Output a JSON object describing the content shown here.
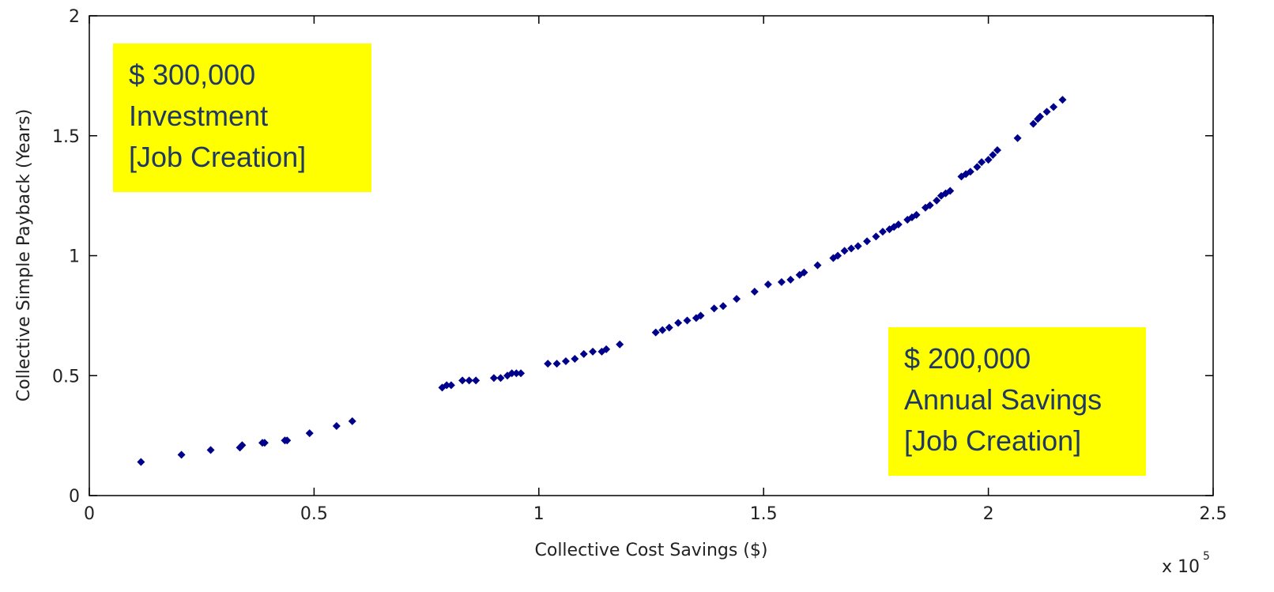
{
  "chart_data": {
    "type": "scatter",
    "title": "",
    "xlabel": "Collective Cost Savings ($)",
    "ylabel": "Collective Simple Payback (Years)",
    "x_multiplier_label": "x 10",
    "x_multiplier_exponent": "5",
    "xlim": [
      0,
      2.5
    ],
    "ylim": [
      0,
      2
    ],
    "x_ticks": [
      0,
      0.5,
      1,
      1.5,
      2,
      2.5
    ],
    "x_tick_labels": [
      "0",
      "0.5",
      "1",
      "1.5",
      "2",
      "2.5"
    ],
    "y_ticks": [
      0,
      0.5,
      1,
      1.5,
      2
    ],
    "y_tick_labels": [
      "0",
      "0.5",
      "1",
      "1.5",
      "2"
    ],
    "grid": false,
    "marker_color": "#00008b",
    "series": [
      {
        "x": [
          0.115,
          0.205,
          0.27,
          0.335,
          0.34,
          0.385,
          0.39,
          0.435,
          0.44,
          0.49,
          0.55,
          0.585,
          0.785,
          0.795,
          0.805,
          0.83,
          0.845,
          0.86,
          0.9,
          0.915,
          0.93,
          0.94,
          0.95,
          0.96,
          1.02,
          1.04,
          1.06,
          1.08,
          1.1,
          1.12,
          1.14,
          1.15,
          1.18,
          1.26,
          1.275,
          1.29,
          1.31,
          1.33,
          1.35,
          1.36,
          1.39,
          1.41,
          1.44,
          1.48,
          1.51,
          1.54,
          1.56,
          1.58,
          1.59,
          1.62,
          1.655,
          1.665,
          1.68,
          1.695,
          1.71,
          1.73,
          1.75,
          1.765,
          1.78,
          1.79,
          1.8,
          1.82,
          1.83,
          1.84,
          1.86,
          1.87,
          1.885,
          1.895,
          1.905,
          1.915,
          1.94,
          1.95,
          1.96,
          1.975,
          1.985,
          2.0,
          2.01,
          2.02,
          2.065,
          2.1,
          2.11,
          2.115,
          2.13,
          2.145,
          2.165
        ],
        "y": [
          0.14,
          0.17,
          0.19,
          0.2,
          0.21,
          0.22,
          0.22,
          0.23,
          0.23,
          0.26,
          0.29,
          0.31,
          0.45,
          0.46,
          0.46,
          0.48,
          0.48,
          0.48,
          0.49,
          0.49,
          0.5,
          0.51,
          0.51,
          0.51,
          0.55,
          0.55,
          0.56,
          0.57,
          0.59,
          0.6,
          0.6,
          0.61,
          0.63,
          0.68,
          0.69,
          0.7,
          0.72,
          0.73,
          0.74,
          0.75,
          0.78,
          0.79,
          0.82,
          0.85,
          0.88,
          0.89,
          0.9,
          0.92,
          0.93,
          0.96,
          0.99,
          1.0,
          1.02,
          1.03,
          1.04,
          1.06,
          1.08,
          1.1,
          1.11,
          1.12,
          1.13,
          1.15,
          1.16,
          1.17,
          1.2,
          1.21,
          1.23,
          1.25,
          1.26,
          1.27,
          1.33,
          1.34,
          1.35,
          1.37,
          1.39,
          1.4,
          1.42,
          1.44,
          1.49,
          1.55,
          1.57,
          1.58,
          1.6,
          1.62,
          1.65
        ]
      }
    ]
  },
  "annotations": {
    "investment": {
      "line1": "$ 300,000",
      "line2": "Investment",
      "line3": "[Job Creation]"
    },
    "savings": {
      "line1": "$ 200,000",
      "line2": "Annual Savings",
      "line3": "[Job Creation]"
    }
  },
  "colors": {
    "annotation_background": "#ffff00",
    "annotation_text": "#1f3864",
    "marker": "#00008b"
  }
}
